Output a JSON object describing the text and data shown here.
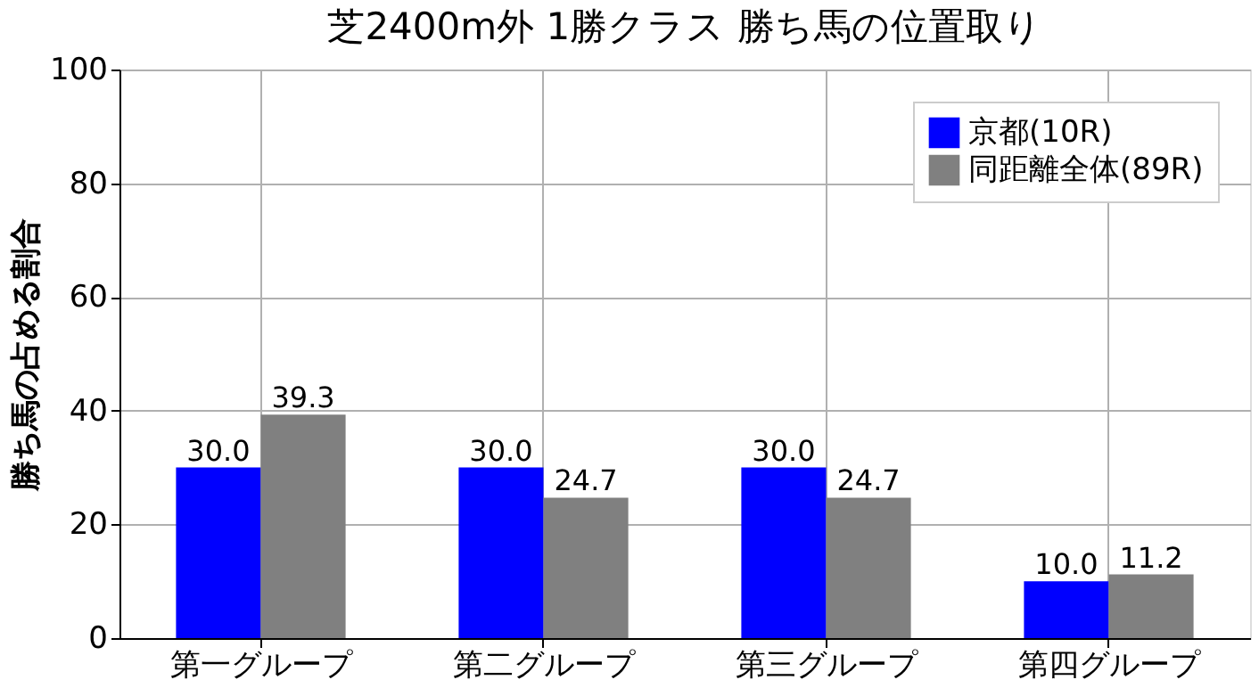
{
  "chart_data": {
    "type": "bar",
    "title": "芝2400m外 1勝クラス 勝ち馬の位置取り",
    "ylabel": "勝ち馬の占める割合",
    "categories": [
      "第一グループ",
      "第二グループ",
      "第三グループ",
      "第四グループ"
    ],
    "series": [
      {
        "name": "京都(10R)",
        "color": "#0000ff",
        "values": [
          30.0,
          30.0,
          30.0,
          10.0
        ]
      },
      {
        "name": "同距離全体(89R)",
        "color": "#808080",
        "values": [
          39.3,
          24.7,
          24.7,
          11.2
        ]
      }
    ],
    "value_labels": [
      [
        "30.0",
        "30.0",
        "30.0",
        "10.0"
      ],
      [
        "39.3",
        "24.7",
        "24.7",
        "11.2"
      ]
    ],
    "ylim": [
      0,
      100
    ],
    "yticks": [
      0,
      20,
      40,
      60,
      80,
      100
    ],
    "grid": true,
    "legend": "top right"
  }
}
